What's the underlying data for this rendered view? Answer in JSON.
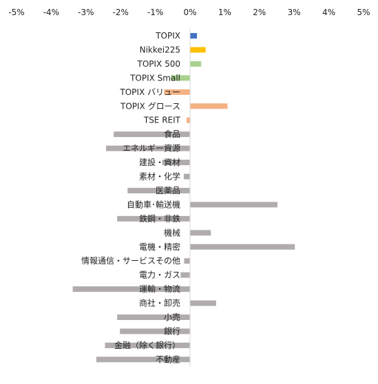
{
  "chart_data": {
    "type": "bar",
    "orientation": "horizontal",
    "x_axis_position": "top",
    "xlim": [
      -5,
      5
    ],
    "x_ticks": [
      -5,
      -4,
      -3,
      -2,
      -1,
      0,
      1,
      2,
      3,
      4,
      5
    ],
    "x_tick_labels": [
      "-5%",
      "-4%",
      "-3%",
      "-2%",
      "-1%",
      "0%",
      "1%",
      "2%",
      "3%",
      "4%",
      "5%"
    ],
    "grid": false,
    "legend": "none",
    "categories": [
      "TOPIX",
      "Nikkei225",
      "TOPIX 500",
      "TOPIX Small",
      "TOPIX バリュー",
      "TOPIX グロース",
      "TSE REIT",
      "食品",
      "エネルギー資源",
      "建設・資材",
      "素材・化学",
      "医薬品",
      "自動車･輸送機",
      "鉄鋼・非鉄",
      "機械",
      "電機・精密",
      "情報通信・サービスその他",
      "電力・ガス",
      "運輸・物流",
      "商社・卸売",
      "小売",
      "銀行",
      "金融（除く銀行）",
      "不動産"
    ],
    "values": [
      0.2,
      0.45,
      0.32,
      -0.55,
      -0.75,
      1.08,
      -0.1,
      -2.2,
      -2.42,
      -0.8,
      -0.18,
      -1.8,
      2.52,
      -2.1,
      0.6,
      3.02,
      -0.17,
      -0.27,
      -3.38,
      0.75,
      -2.1,
      -2.02,
      -2.45,
      -2.7
    ],
    "colors": [
      "#4472c4",
      "#ffc000",
      "#a9d18e",
      "#a9d18e",
      "#f4b183",
      "#f4b183",
      "#f4b183",
      "#b0acac",
      "#b0acac",
      "#b0acac",
      "#b0acac",
      "#b0acac",
      "#b0acac",
      "#b0acac",
      "#b0acac",
      "#b0acac",
      "#b0acac",
      "#b0acac",
      "#b0acac",
      "#b0acac",
      "#b0acac",
      "#b0acac",
      "#b0acac",
      "#b0acac"
    ],
    "title": "",
    "xlabel": "",
    "ylabel": ""
  }
}
